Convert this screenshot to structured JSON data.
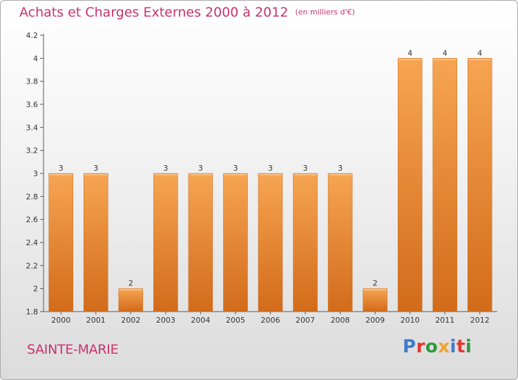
{
  "header": {
    "title": "Achats et Charges Externes 2000 à 2012",
    "subtitle": "(en milliers d'€)"
  },
  "footer": {
    "location": "SAINTE-MARIE",
    "logo_text": "Proxiti"
  },
  "colors": {
    "title": "#c8336c",
    "bar_light": "#f6a552",
    "bar_dark": "#d26b1a",
    "logo_letters": [
      "#3d7cc9",
      "#e2362f",
      "#2f9a3e",
      "#f2a12c",
      "#3d7cc9",
      "#e2362f",
      "#2f9a3e"
    ]
  },
  "chart_data": {
    "type": "bar",
    "title": "Achats et Charges Externes 2000 à 2012",
    "subtitle": "(en milliers d'€)",
    "categories": [
      "2000",
      "2001",
      "2002",
      "2003",
      "2004",
      "2005",
      "2006",
      "2007",
      "2008",
      "2009",
      "2010",
      "2011",
      "2012"
    ],
    "values": [
      3,
      3,
      2,
      3,
      3,
      3,
      3,
      3,
      3,
      2,
      4,
      4,
      4
    ],
    "data_labels": [
      "3",
      "3",
      "2",
      "3",
      "3",
      "3",
      "3",
      "3",
      "3",
      "2",
      "4",
      "4",
      "4"
    ],
    "ylim": [
      1.8,
      4.2
    ],
    "yticks": [
      1.8,
      2,
      2.2,
      2.4,
      2.6,
      2.8,
      3,
      3.2,
      3.4,
      3.6,
      3.8,
      4,
      4.2
    ],
    "ytick_labels": [
      "1.8",
      "2",
      "2.2",
      "2.4",
      "2.6",
      "2.8",
      "3",
      "3.2",
      "3.4",
      "3.6",
      "3.8",
      "4",
      "4.2"
    ],
    "grid": false,
    "xlabel": "",
    "ylabel": ""
  }
}
